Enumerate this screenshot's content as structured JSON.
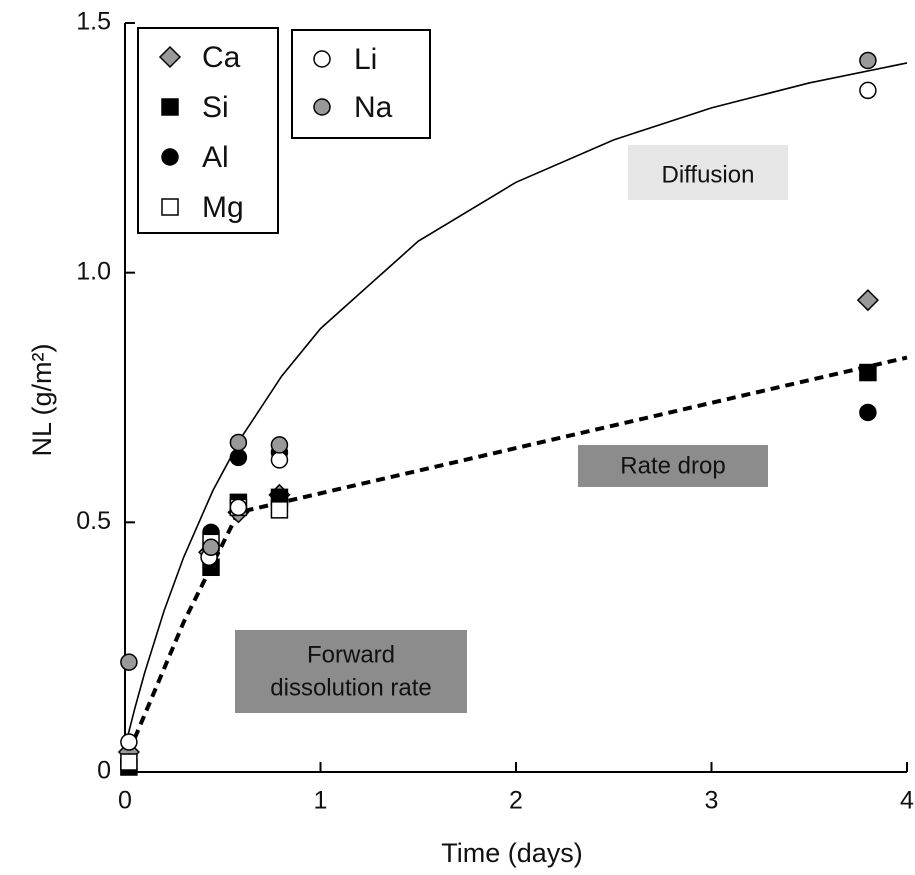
{
  "chart_data": {
    "type": "scatter",
    "xlabel": "Time (days)",
    "ylabel": "NL (g/m²)",
    "xlim": [
      0,
      4
    ],
    "ylim": [
      0,
      1.5
    ],
    "xticks": [
      0,
      1,
      2,
      3,
      4
    ],
    "yticks": [
      0,
      0.5,
      {
        "value": 1,
        "label": "1.0"
      },
      1.5
    ],
    "series": [
      {
        "name": "Ca",
        "marker": "diamond",
        "color": "#999999",
        "x": [
          0.02,
          0.43,
          0.58,
          0.79,
          3.8
        ],
        "values": [
          0.04,
          0.44,
          0.52,
          0.555,
          0.945
        ]
      },
      {
        "name": "Si",
        "marker": "square",
        "color": "#000000",
        "x": [
          0.02,
          0.44,
          0.58,
          0.79,
          3.8
        ],
        "values": [
          0.01,
          0.41,
          0.54,
          0.55,
          0.8
        ]
      },
      {
        "name": "Al",
        "marker": "circle",
        "color": "#000000",
        "x": [
          0.02,
          0.44,
          0.58,
          0.79,
          3.8
        ],
        "values": [
          0.02,
          0.48,
          0.63,
          0.64,
          0.72
        ]
      },
      {
        "name": "Mg",
        "marker": "square",
        "color": "#ffffff",
        "x": [
          0.02,
          0.44,
          0.58,
          0.79
        ],
        "values": [
          0.02,
          0.46,
          0.53,
          0.525
        ]
      },
      {
        "name": "Li",
        "marker": "circle",
        "color": "#ffffff",
        "x": [
          0.02,
          0.43,
          0.58,
          0.79,
          3.8
        ],
        "values": [
          0.06,
          0.43,
          0.53,
          0.625,
          1.365
        ]
      },
      {
        "name": "Na",
        "marker": "circle",
        "color": "#999999",
        "x": [
          0.02,
          0.44,
          0.58,
          0.79,
          3.8
        ],
        "values": [
          0.22,
          0.45,
          0.66,
          0.655,
          1.425
        ]
      }
    ],
    "fit_lines": [
      {
        "style": "solid",
        "x": [
          0,
          0.05,
          0.1,
          0.2,
          0.3,
          0.45,
          0.6,
          0.8,
          1,
          1.5,
          2,
          2.5,
          3,
          3.5,
          4
        ],
        "values": [
          0.05,
          0.127,
          0.198,
          0.323,
          0.43,
          0.564,
          0.673,
          0.792,
          0.888,
          1.063,
          1.181,
          1.266,
          1.33,
          1.38,
          1.42
        ]
      },
      {
        "style": "dashed",
        "x": [
          0.02,
          0.3,
          0.58,
          4
        ],
        "values": [
          0.04,
          0.3,
          0.52,
          0.83
        ]
      }
    ],
    "annotations": {
      "diffusion": "Diffusion",
      "rate_drop": "Rate drop",
      "forward": [
        "Forward",
        "dissolution rate"
      ]
    }
  }
}
